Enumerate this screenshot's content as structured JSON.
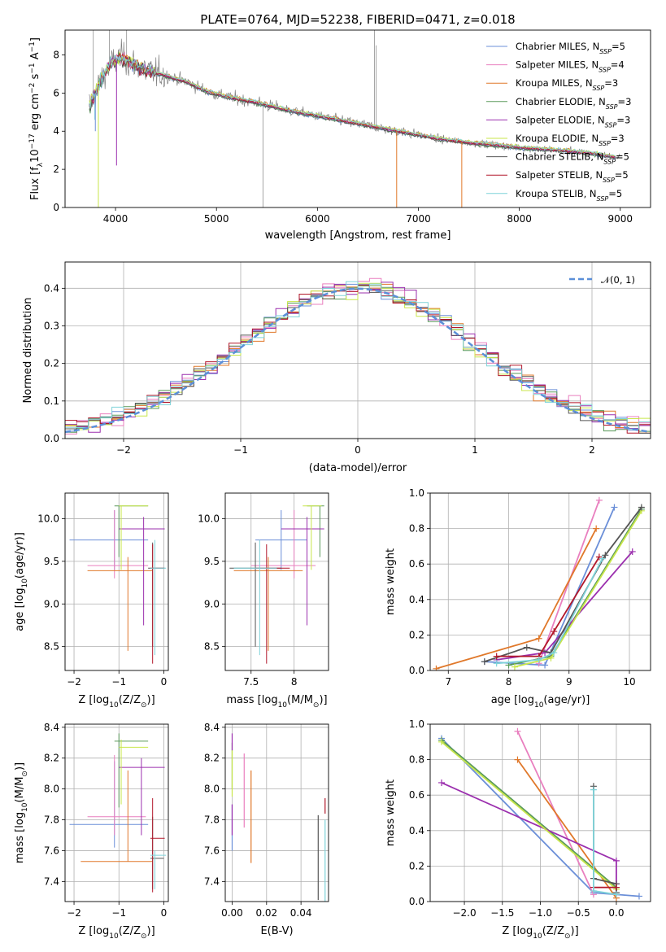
{
  "title": "PLATE=0764, MJD=52238, FIBERID=0471, z=0.018",
  "colors": {
    "Chabrier MILES": "#6b8fd8",
    "Salpeter MILES": "#e97fbf",
    "Kroupa MILES": "#e0782a",
    "Chabrier ELODIE": "#5a9a5a",
    "Salpeter ELODIE": "#9b2fae",
    "Kroupa ELODIE": "#c8e64a",
    "Chabrier STELIB": "#555555",
    "Salpeter STELIB": "#b2182b",
    "Kroupa STELIB": "#7fd3d9",
    "data": "#808080",
    "normal": "#5b8fd8"
  },
  "chart_data": [
    {
      "type": "line",
      "title": "PLATE=0764, MJD=52238, FIBERID=0471, z=0.018",
      "xlabel": "wavelength [Angstrom, rest frame]",
      "ylabel_parts": [
        "Flux [f",
        "λ",
        "10",
        "−17",
        " erg cm",
        "−2",
        " s",
        "−1",
        " A",
        "−1",
        "]"
      ],
      "xlim": [
        3500,
        9300
      ],
      "ylim": [
        0,
        9.3
      ],
      "xticks": [
        4000,
        5000,
        6000,
        7000,
        8000,
        9000
      ],
      "yticks": [
        0,
        2,
        4,
        6,
        8
      ],
      "grid": false,
      "legend_position": "top-right",
      "legend": [
        {
          "name": "Chabrier MILES",
          "nssp": "5"
        },
        {
          "name": "Salpeter MILES",
          "nssp": "4"
        },
        {
          "name": "Kroupa MILES",
          "nssp": "3"
        },
        {
          "name": "Chabrier ELODIE",
          "nssp": "3"
        },
        {
          "name": "Salpeter ELODIE",
          "nssp": "3"
        },
        {
          "name": "Kroupa ELODIE",
          "nssp": "3"
        },
        {
          "name": "Chabrier STELIB",
          "nssp": "5"
        },
        {
          "name": "Salpeter STELIB",
          "nssp": "5"
        },
        {
          "name": "Kroupa STELIB",
          "nssp": "5"
        }
      ],
      "continuum": {
        "x": [
          3750,
          3850,
          3950,
          4050,
          4150,
          4300,
          4500,
          4700,
          4900,
          5100,
          5400,
          5700,
          6000,
          6300,
          6600,
          6900,
          7200,
          7500,
          7800,
          8100,
          8400,
          8700,
          9000
        ],
        "y": [
          5.4,
          6.6,
          7.5,
          7.9,
          7.6,
          7.2,
          6.9,
          6.6,
          6.1,
          5.8,
          5.5,
          5.1,
          4.8,
          4.5,
          4.2,
          3.9,
          3.6,
          3.4,
          3.25,
          3.1,
          3.0,
          2.85,
          2.6
        ]
      }
    },
    {
      "type": "histogram",
      "xlabel": "(data-model)/error",
      "ylabel": "Normed distribution",
      "xlim": [
        -2.5,
        2.5
      ],
      "ylim": [
        0,
        0.47
      ],
      "xticks": [
        -2,
        -1,
        0,
        1,
        2
      ],
      "yticks": [
        0.0,
        0.1,
        0.2,
        0.3,
        0.4
      ],
      "grid": true,
      "legend_position": "top-right",
      "legend": [
        "𝒩(0, 1)"
      ],
      "bin_width": 0.1
    },
    {
      "type": "scatter",
      "xlabel": "Z [log10(Z/Z⊙)]",
      "ylabel": "age [log10(age/yr)]",
      "xlim": [
        -2.2,
        0.1
      ],
      "ylim": [
        8.22,
        10.3
      ],
      "xticks": [
        -2,
        -1,
        0
      ],
      "yticks": [
        8.5,
        9.0,
        9.5,
        10.0
      ],
      "grid": true
    },
    {
      "type": "scatter",
      "xlabel": "mass [log10(M/M⊙)]",
      "xlim": [
        7.2,
        8.4
      ],
      "ylim": [
        8.22,
        10.3
      ],
      "xticks": [
        7.5,
        8.0
      ],
      "yticks": [
        8.5,
        9.0,
        9.5,
        10.0
      ],
      "grid": true
    },
    {
      "type": "line",
      "xlabel": "age [log10(age/yr)]",
      "ylabel": "mass weight",
      "xlim": [
        6.7,
        10.35
      ],
      "ylim": [
        0,
        1.0
      ],
      "xticks": [
        7,
        8,
        9,
        10
      ],
      "yticks": [
        0.0,
        0.2,
        0.4,
        0.6,
        0.8,
        1.0
      ],
      "grid": true,
      "series": [
        {
          "key": "Chabrier MILES",
          "x": [
            7.6,
            8.6,
            9.75
          ],
          "y": [
            0.05,
            0.03,
            0.92
          ]
        },
        {
          "key": "Salpeter MILES",
          "x": [
            8.5,
            9.5
          ],
          "y": [
            0.04,
            0.96
          ]
        },
        {
          "key": "Kroupa MILES",
          "x": [
            6.8,
            8.5,
            9.45
          ],
          "y": [
            0.01,
            0.18,
            0.8
          ]
        },
        {
          "key": "Chabrier ELODIE",
          "x": [
            8.0,
            8.7,
            10.2
          ],
          "y": [
            0.03,
            0.08,
            0.91
          ]
        },
        {
          "key": "Salpeter ELODIE",
          "x": [
            7.8,
            8.6,
            10.05
          ],
          "y": [
            0.06,
            0.1,
            0.67
          ]
        },
        {
          "key": "Kroupa ELODIE",
          "x": [
            8.1,
            8.7,
            10.2
          ],
          "y": [
            0.02,
            0.07,
            0.9
          ]
        },
        {
          "key": "Chabrier STELIB",
          "x": [
            7.6,
            8.3,
            8.7,
            9.6,
            10.2
          ],
          "y": [
            0.05,
            0.13,
            0.1,
            0.65,
            0.92
          ]
        },
        {
          "key": "Salpeter STELIB",
          "x": [
            7.8,
            8.5,
            8.75,
            9.5
          ],
          "y": [
            0.08,
            0.08,
            0.22,
            0.64
          ]
        },
        {
          "key": "Kroupa STELIB",
          "x": [
            7.8,
            8.5,
            8.75,
            9.55
          ],
          "y": [
            0.04,
            0.06,
            0.1,
            0.63
          ]
        }
      ]
    },
    {
      "type": "scatter",
      "xlabel": "Z [log10(Z/Z⊙)]",
      "ylabel": "mass [log10(M/M⊙)]",
      "xlim": [
        -2.2,
        0.1
      ],
      "ylim": [
        7.27,
        8.42
      ],
      "xticks": [
        -2,
        -1,
        0
      ],
      "yticks": [
        7.4,
        7.6,
        7.8,
        8.0,
        8.2,
        8.4
      ],
      "grid": true
    },
    {
      "type": "scatter",
      "xlabel": "E(B-V)",
      "xlim": [
        -0.004,
        0.056
      ],
      "ylim": [
        7.27,
        8.42
      ],
      "xticks": [
        0.0,
        0.02,
        0.04
      ],
      "xtick_labels": [
        "0.00",
        "0.02",
        "0.04"
      ],
      "yticks": [
        7.4,
        7.6,
        7.8,
        8.0,
        8.2,
        8.4
      ],
      "grid": true,
      "points": [
        {
          "key": "Chabrier MILES",
          "x": 0.0,
          "ylo": 7.6,
          "yhi": 7.9
        },
        {
          "key": "Salpeter MILES",
          "x": 0.007,
          "ylo": 7.75,
          "yhi": 8.23
        },
        {
          "key": "Kroupa MILES",
          "x": 0.011,
          "ylo": 7.52,
          "yhi": 8.12
        },
        {
          "key": "Chabrier ELODIE",
          "x": 0.0,
          "ylo": 8.0,
          "yhi": 8.3
        },
        {
          "key": "Salpeter ELODIE",
          "x": 0.0,
          "ylo": 7.7,
          "yhi": 7.9
        },
        {
          "key": "Salpeter ELODIE",
          "x": 0.0,
          "ylo": 8.25,
          "yhi": 8.36
        },
        {
          "key": "Kroupa ELODIE",
          "x": 0.0,
          "ylo": 7.95,
          "yhi": 8.25
        },
        {
          "key": "Chabrier STELIB",
          "x": 0.05,
          "ylo": 7.28,
          "yhi": 7.83
        },
        {
          "key": "Salpeter STELIB",
          "x": 0.054,
          "ylo": 7.84,
          "yhi": 7.94
        },
        {
          "key": "Kroupa STELIB",
          "x": 0.054,
          "ylo": 7.26,
          "yhi": 7.8
        }
      ]
    },
    {
      "type": "line",
      "xlabel": "Z [log10(Z/Z⊙)]",
      "ylabel": "mass weight",
      "xlim": [
        -2.45,
        0.45
      ],
      "ylim": [
        0,
        1.0
      ],
      "xticks": [
        -2.0,
        -1.5,
        -1.0,
        -0.5,
        0.0
      ],
      "xtick_labels": [
        "−2.0",
        "−1.5",
        "−1.0",
        "−0.5",
        "0.0"
      ],
      "yticks": [
        0.0,
        0.2,
        0.4,
        0.6,
        0.8,
        1.0
      ],
      "grid": true,
      "series": [
        {
          "key": "Chabrier MILES",
          "x": [
            -2.3,
            -0.3,
            0.3
          ],
          "y": [
            0.92,
            0.05,
            0.03
          ]
        },
        {
          "key": "Salpeter MILES",
          "x": [
            -1.3,
            -0.3
          ],
          "y": [
            0.96,
            0.04
          ]
        },
        {
          "key": "Kroupa MILES",
          "x": [
            -1.3,
            0.0
          ],
          "y": [
            0.8,
            0.02
          ]
        },
        {
          "key": "Chabrier ELODIE",
          "x": [
            -2.3,
            0.0
          ],
          "y": [
            0.91,
            0.08
          ]
        },
        {
          "key": "Salpeter ELODIE",
          "x": [
            -2.3,
            0.0,
            0.0
          ],
          "y": [
            0.67,
            0.23,
            0.1
          ]
        },
        {
          "key": "Kroupa ELODIE",
          "x": [
            -2.3,
            0.0
          ],
          "y": [
            0.9,
            0.07
          ]
        },
        {
          "key": "Chabrier STELIB",
          "x": [
            -0.3,
            -0.3,
            0.0,
            0.0
          ],
          "y": [
            0.65,
            0.13,
            0.1,
            0.05
          ]
        },
        {
          "key": "Salpeter STELIB",
          "x": [
            -0.3,
            0.0
          ],
          "y": [
            0.08,
            0.08
          ]
        },
        {
          "key": "Kroupa STELIB",
          "x": [
            -0.3,
            -0.3,
            0.0
          ],
          "y": [
            0.63,
            0.06,
            0.04
          ]
        }
      ]
    }
  ],
  "crosses": {
    "age_vs_Z": [
      {
        "key": "Chabrier MILES",
        "x": -1.1,
        "y": 9.75,
        "xlo": -2.1,
        "xhi": -0.35,
        "ylo": 9.4,
        "yhi": 10.1
      },
      {
        "key": "Salpeter MILES",
        "x": -1.1,
        "y": 9.45,
        "xlo": -1.7,
        "xhi": -0.35,
        "ylo": 9.3,
        "yhi": 10.1
      },
      {
        "key": "Kroupa MILES",
        "x": -0.8,
        "y": 9.39,
        "xlo": -1.7,
        "xhi": -0.25,
        "ylo": 8.45,
        "yhi": 9.55
      },
      {
        "key": "Chabrier ELODIE",
        "x": -1.0,
        "y": 10.15,
        "xlo": -1.1,
        "xhi": -0.35,
        "ylo": 9.55,
        "yhi": 10.15
      },
      {
        "key": "Salpeter ELODIE",
        "x": -0.45,
        "y": 9.88,
        "xlo": -1.0,
        "xhi": 0.02,
        "ylo": 8.75,
        "yhi": 10.02
      },
      {
        "key": "Kroupa ELODIE",
        "x": -0.95,
        "y": 10.15,
        "xlo": -1.0,
        "xhi": -0.35,
        "ylo": 9.4,
        "yhi": 10.15
      },
      {
        "key": "Chabrier STELIB",
        "x": -0.25,
        "y": 9.42,
        "xlo": -0.35,
        "xhi": 0.02,
        "ylo": 8.5,
        "yhi": 9.72
      },
      {
        "key": "Salpeter STELIB",
        "x": -0.25,
        "y": 9.42,
        "xlo": -0.3,
        "xhi": 0.0,
        "ylo": 8.3,
        "yhi": 9.7
      },
      {
        "key": "Kroupa STELIB",
        "x": -0.2,
        "y": 9.42,
        "xlo": -0.3,
        "xhi": 0.05,
        "ylo": 8.4,
        "yhi": 9.75
      }
    ],
    "age_vs_mass": [
      {
        "key": "Chabrier MILES",
        "x": 7.85,
        "y": 9.75,
        "xlo": 7.55,
        "xhi": 8.15,
        "ylo": 9.4,
        "yhi": 10.1
      },
      {
        "key": "Salpeter MILES",
        "x": 8.0,
        "y": 9.45,
        "xlo": 7.5,
        "xhi": 8.25,
        "ylo": 9.3,
        "yhi": 10.1
      },
      {
        "key": "Kroupa MILES",
        "x": 7.7,
        "y": 9.39,
        "xlo": 7.3,
        "xhi": 8.1,
        "ylo": 8.45,
        "yhi": 9.55
      },
      {
        "key": "Chabrier ELODIE",
        "x": 8.3,
        "y": 10.15,
        "xlo": 8.15,
        "xhi": 8.35,
        "ylo": 9.55,
        "yhi": 10.15
      },
      {
        "key": "Salpeter ELODIE",
        "x": 8.15,
        "y": 9.88,
        "xlo": 7.85,
        "xhi": 8.35,
        "ylo": 8.75,
        "yhi": 10.02
      },
      {
        "key": "Kroupa ELODIE",
        "x": 8.2,
        "y": 10.15,
        "xlo": 8.1,
        "xhi": 8.32,
        "ylo": 9.4,
        "yhi": 10.15
      },
      {
        "key": "Chabrier STELIB",
        "x": 7.55,
        "y": 9.42,
        "xlo": 7.25,
        "xhi": 7.85,
        "ylo": 8.5,
        "yhi": 9.72
      },
      {
        "key": "Salpeter STELIB",
        "x": 7.68,
        "y": 9.42,
        "xlo": 7.55,
        "xhi": 7.95,
        "ylo": 8.3,
        "yhi": 9.7
      },
      {
        "key": "Kroupa STELIB",
        "x": 7.6,
        "y": 9.42,
        "xlo": 7.3,
        "xhi": 7.8,
        "ylo": 8.4,
        "yhi": 9.75
      }
    ],
    "mass_vs_Z": [
      {
        "key": "Chabrier MILES",
        "x": -1.1,
        "y": 7.77,
        "xlo": -2.1,
        "xhi": -0.35,
        "ylo": 7.62,
        "yhi": 8.18
      },
      {
        "key": "Salpeter MILES",
        "x": -1.1,
        "y": 7.82,
        "xlo": -1.7,
        "xhi": -0.4,
        "ylo": 7.7,
        "yhi": 8.22
      },
      {
        "key": "Kroupa MILES",
        "x": -0.8,
        "y": 7.53,
        "xlo": -1.85,
        "xhi": -0.25,
        "ylo": 7.53,
        "yhi": 8.12
      },
      {
        "key": "Chabrier ELODIE",
        "x": -1.0,
        "y": 8.31,
        "xlo": -1.1,
        "xhi": -0.35,
        "ylo": 7.88,
        "yhi": 8.36
      },
      {
        "key": "Salpeter ELODIE",
        "x": -0.5,
        "y": 8.14,
        "xlo": -1.0,
        "xhi": 0.02,
        "ylo": 7.7,
        "yhi": 8.2
      },
      {
        "key": "Kroupa ELODIE",
        "x": -0.95,
        "y": 8.27,
        "xlo": -1.0,
        "xhi": -0.35,
        "ylo": 7.9,
        "yhi": 8.32
      },
      {
        "key": "Chabrier STELIB",
        "x": -0.25,
        "y": 7.55,
        "xlo": -0.3,
        "xhi": 0.0,
        "ylo": 7.35,
        "yhi": 7.82
      },
      {
        "key": "Salpeter STELIB",
        "x": -0.25,
        "y": 7.68,
        "xlo": -0.3,
        "xhi": 0.02,
        "ylo": 7.33,
        "yhi": 7.94
      },
      {
        "key": "Kroupa STELIB",
        "x": -0.2,
        "y": 7.57,
        "xlo": -0.3,
        "xhi": 0.05,
        "ylo": 7.35,
        "yhi": 7.6
      }
    ]
  }
}
